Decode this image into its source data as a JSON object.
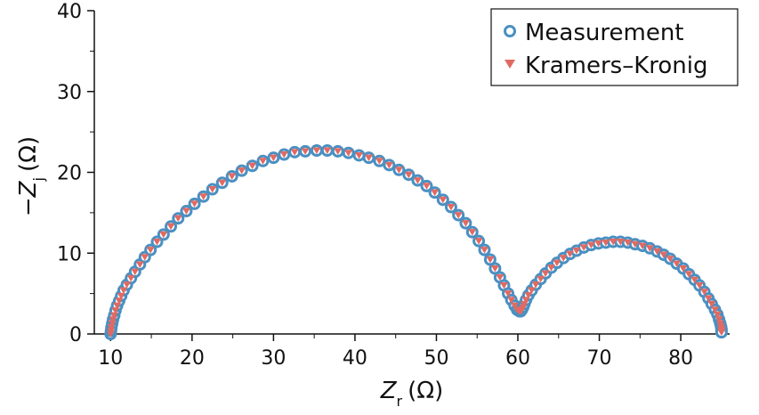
{
  "chart_data": {
    "type": "scatter",
    "title": "",
    "xlabel": {
      "main": "Z",
      "sub": "r",
      "unit": "(Ω)"
    },
    "ylabel": {
      "prefix": "−",
      "main": "Z",
      "sub": "j",
      "unit": "(Ω)"
    },
    "xlim": [
      8,
      86
    ],
    "ylim": [
      0,
      40
    ],
    "xticks": [
      10,
      20,
      30,
      40,
      50,
      60,
      70,
      80
    ],
    "yticks": [
      0,
      10,
      20,
      30,
      40
    ],
    "grid": false,
    "legend_position": "top-right",
    "series": [
      {
        "name": "Measurement",
        "marker": "circle-open",
        "color": "#4a90c2",
        "x": [
          10.0,
          10.05,
          10.1,
          10.2,
          10.3,
          10.45,
          10.6,
          10.8,
          11.05,
          11.3,
          11.6,
          12.0,
          12.5,
          13.0,
          13.6,
          14.2,
          14.9,
          15.7,
          16.5,
          17.4,
          18.3,
          19.3,
          20.3,
          21.4,
          22.5,
          23.7,
          24.9,
          26.1,
          27.4,
          28.7,
          30.0,
          31.3,
          32.6,
          33.9,
          35.3,
          36.6,
          37.9,
          39.2,
          40.5,
          41.7,
          43.0,
          44.2,
          45.4,
          46.6,
          47.7,
          48.8,
          49.8,
          50.8,
          51.8,
          52.7,
          53.6,
          54.4,
          55.2,
          55.9,
          56.6,
          57.2,
          57.8,
          58.3,
          58.8,
          59.2,
          59.6,
          59.9,
          60.2,
          60.35,
          60.5,
          60.65,
          60.8,
          61.0,
          61.3,
          61.7,
          62.2,
          62.8,
          63.4,
          64.1,
          64.8,
          65.6,
          66.4,
          67.2,
          68.1,
          69.0,
          69.9,
          70.8,
          71.7,
          72.6,
          73.5,
          74.4,
          75.3,
          76.2,
          77.1,
          77.9,
          78.7,
          79.5,
          80.3,
          81.0,
          81.7,
          82.3,
          82.9,
          83.4,
          83.8,
          84.2,
          84.5,
          84.7,
          84.85,
          84.95,
          85.0,
          85.0,
          85.0
        ],
        "y": [
          0.0,
          0.4,
          0.8,
          1.3,
          1.8,
          2.3,
          2.9,
          3.5,
          4.1,
          4.7,
          5.4,
          6.1,
          6.9,
          7.7,
          8.6,
          9.5,
          10.4,
          11.4,
          12.3,
          13.3,
          14.3,
          15.2,
          16.1,
          17.0,
          17.9,
          18.7,
          19.5,
          20.2,
          20.8,
          21.4,
          21.8,
          22.2,
          22.5,
          22.6,
          22.7,
          22.7,
          22.6,
          22.4,
          22.1,
          21.8,
          21.4,
          20.9,
          20.3,
          19.7,
          19.0,
          18.3,
          17.5,
          16.6,
          15.7,
          14.7,
          13.7,
          12.6,
          11.5,
          10.4,
          9.2,
          8.1,
          7.0,
          6.0,
          5.0,
          4.2,
          3.5,
          3.0,
          2.8,
          2.8,
          3.0,
          3.3,
          3.7,
          4.2,
          4.8,
          5.4,
          6.1,
          6.8,
          7.5,
          8.2,
          8.8,
          9.4,
          9.9,
          10.3,
          10.7,
          11.0,
          11.2,
          11.3,
          11.4,
          11.4,
          11.3,
          11.1,
          10.9,
          10.6,
          10.2,
          9.8,
          9.3,
          8.7,
          8.1,
          7.4,
          6.7,
          6.0,
          5.2,
          4.4,
          3.7,
          3.0,
          2.4,
          1.8,
          1.3,
          0.9,
          0.6,
          0.4,
          0.2
        ]
      },
      {
        "name": "Kramers–Kronig",
        "marker": "triangle-down",
        "color": "#e06a63",
        "x": [
          10.0,
          10.05,
          10.1,
          10.2,
          10.3,
          10.45,
          10.6,
          10.8,
          11.05,
          11.3,
          11.6,
          12.0,
          12.5,
          13.0,
          13.6,
          14.2,
          14.9,
          15.7,
          16.5,
          17.4,
          18.3,
          19.3,
          20.3,
          21.4,
          22.5,
          23.7,
          24.9,
          26.1,
          27.4,
          28.7,
          30.0,
          31.3,
          32.6,
          33.9,
          35.3,
          36.6,
          37.9,
          39.2,
          40.5,
          41.7,
          43.0,
          44.2,
          45.4,
          46.6,
          47.7,
          48.8,
          49.8,
          50.8,
          51.8,
          52.7,
          53.6,
          54.4,
          55.2,
          55.9,
          56.6,
          57.2,
          57.8,
          58.3,
          58.8,
          59.2,
          59.6,
          59.9,
          60.2,
          60.35,
          60.5,
          60.65,
          60.8,
          61.0,
          61.3,
          61.7,
          62.2,
          62.8,
          63.4,
          64.1,
          64.8,
          65.6,
          66.4,
          67.2,
          68.1,
          69.0,
          69.9,
          70.8,
          71.7,
          72.6,
          73.5,
          74.4,
          75.3,
          76.2,
          77.1,
          77.9,
          78.7,
          79.5,
          80.3,
          81.0,
          81.7,
          82.3,
          82.9,
          83.4,
          83.8,
          84.2,
          84.5,
          84.7,
          84.85,
          84.95,
          85.0,
          85.0,
          85.0
        ],
        "y": [
          0.0,
          0.4,
          0.8,
          1.3,
          1.8,
          2.3,
          2.9,
          3.5,
          4.1,
          4.7,
          5.4,
          6.1,
          6.9,
          7.7,
          8.6,
          9.5,
          10.4,
          11.4,
          12.3,
          13.3,
          14.3,
          15.2,
          16.1,
          17.0,
          17.9,
          18.7,
          19.5,
          20.2,
          20.8,
          21.4,
          21.8,
          22.2,
          22.5,
          22.6,
          22.7,
          22.7,
          22.6,
          22.4,
          22.1,
          21.8,
          21.4,
          20.9,
          20.3,
          19.7,
          19.0,
          18.3,
          17.5,
          16.6,
          15.7,
          14.7,
          13.7,
          12.6,
          11.5,
          10.4,
          9.2,
          8.1,
          7.0,
          6.0,
          5.0,
          4.2,
          3.5,
          3.0,
          2.8,
          2.8,
          3.0,
          3.3,
          3.7,
          4.2,
          4.8,
          5.4,
          6.1,
          6.8,
          7.5,
          8.2,
          8.8,
          9.4,
          9.9,
          10.3,
          10.7,
          11.0,
          11.2,
          11.3,
          11.4,
          11.4,
          11.3,
          11.1,
          10.9,
          10.6,
          10.2,
          9.8,
          9.3,
          8.7,
          8.1,
          7.4,
          6.7,
          6.0,
          5.2,
          4.4,
          3.7,
          3.0,
          2.4,
          1.8,
          1.3,
          0.9,
          0.6,
          0.4,
          0.2
        ]
      }
    ]
  }
}
